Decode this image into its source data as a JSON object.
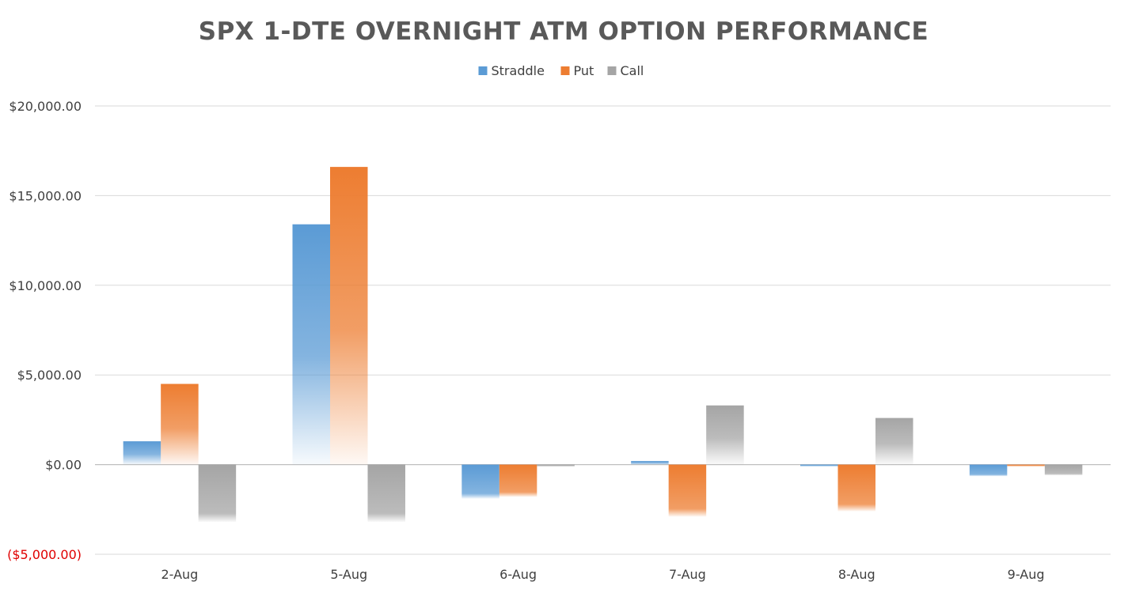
{
  "chart_data": {
    "type": "bar",
    "title": "SPX 1-DTE OVERNIGHT ATM OPTION PERFORMANCE",
    "categories": [
      "2-Aug",
      "5-Aug",
      "6-Aug",
      "7-Aug",
      "8-Aug",
      "9-Aug"
    ],
    "series": [
      {
        "name": "Straddle",
        "color": "#5b9bd5",
        "values": [
          1300,
          13400,
          -1900,
          200,
          -50,
          -650
        ]
      },
      {
        "name": "Put",
        "color": "#ed7d31",
        "values": [
          4500,
          16600,
          -1800,
          -2900,
          -2600,
          -50
        ]
      },
      {
        "name": "Call",
        "color": "#a5a5a5",
        "values": [
          -3200,
          -3200,
          -100,
          3300,
          2600,
          -600
        ]
      }
    ],
    "ylim": [
      -5000,
      20000
    ],
    "yticks": [
      20000,
      15000,
      10000,
      5000,
      0,
      -5000
    ],
    "ytick_labels": [
      "$20,000.00",
      "$15,000.00",
      "$10,000.00",
      "$5,000.00",
      "$0.00",
      "($5,000.00)"
    ],
    "negative_tick_color": "#e00000",
    "legend_position": "top-center",
    "grid": true,
    "xlabel": "",
    "ylabel": ""
  }
}
